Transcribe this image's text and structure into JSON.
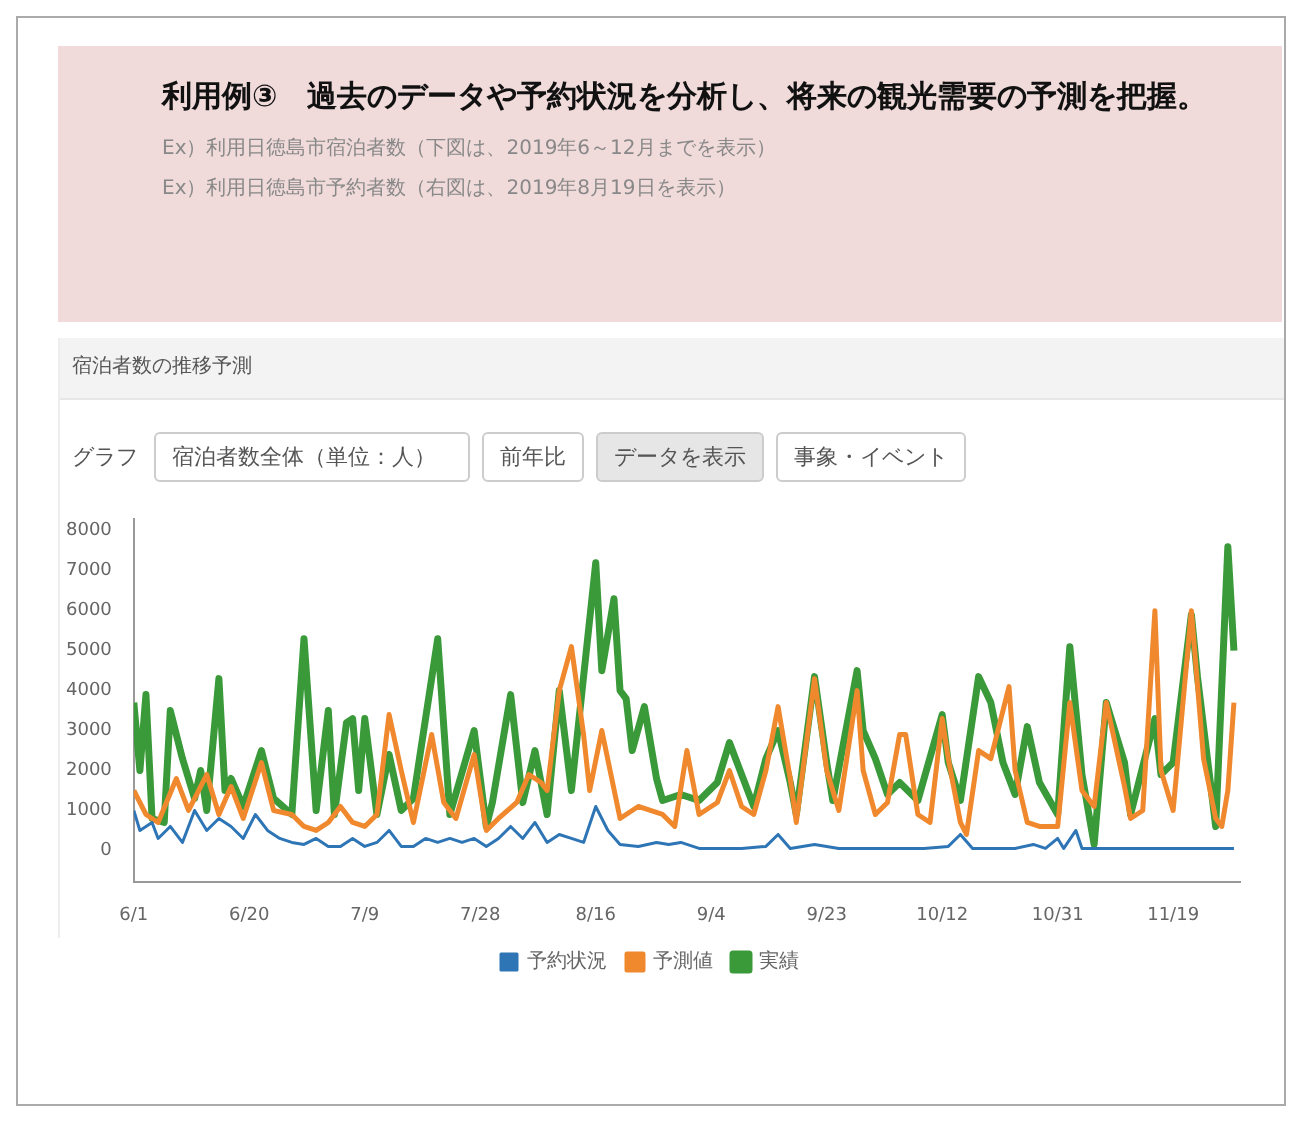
{
  "chart_data": {
    "type": "line",
    "title": "利用例③　過去のデータや予約状況を分析し、将来の観光需要の予測を把握。",
    "annotations": [
      "Ex）利用日徳島市宿泊者数（下図は、2019年6～12月までを表示）",
      "Ex）利用日徳島市予約者数（右図は、2019年8月19日を表示）",
      "宿泊者数の推移予測",
      "グラフ",
      "宿泊者数全体（単位：人）",
      "前年比",
      "データを表示",
      "事象・イベント"
    ],
    "xlim": [
      "--06-01",
      "--11-30"
    ],
    "xticks": [
      {
        "value": "--06-01",
        "label": "6/1"
      },
      {
        "value": "--06-20",
        "label": "6/20"
      },
      {
        "value": "--07-09",
        "label": "7/9"
      },
      {
        "value": "--07-28",
        "label": "7/28"
      },
      {
        "value": "--08-16",
        "label": "8/16"
      },
      {
        "value": "--09-04",
        "label": "9/4"
      },
      {
        "value": "--09-23",
        "label": "9/23"
      },
      {
        "value": "--10-12",
        "label": "10/12"
      },
      {
        "value": "--10-31",
        "label": "10/31"
      },
      {
        "value": "--11-19",
        "label": "11/19"
      }
    ],
    "ylim": [
      -800,
      8300
    ],
    "yticks": [
      0,
      1000,
      2000,
      3000,
      4000,
      5000,
      6000,
      7000,
      8000
    ],
    "grid": false,
    "legend": "bottom",
    "marker": "none",
    "line_style": "solid",
    "series": [
      {
        "name": "予約状況",
        "color": "#2e75b6",
        "x": [
          "--06-01",
          "--06-02",
          "--06-04",
          "--06-05",
          "--06-07",
          "--06-09",
          "--06-11",
          "--06-13",
          "--06-15",
          "--06-17",
          "--06-19",
          "--06-21",
          "--06-23",
          "--06-25",
          "--06-27",
          "--06-29",
          "--07-01",
          "--07-03",
          "--07-05",
          "--07-07",
          "--07-09",
          "--07-11",
          "--07-13",
          "--07-15",
          "--07-17",
          "--07-19",
          "--07-21",
          "--07-23",
          "--07-25",
          "--07-27",
          "--07-29",
          "--07-31",
          "--08-02",
          "--08-04",
          "--08-06",
          "--08-08",
          "--08-10",
          "--08-12",
          "--08-14",
          "--08-16",
          "--08-18",
          "--08-20",
          "--08-23",
          "--08-26",
          "--08-28",
          "--08-30",
          "--09-02",
          "--09-05",
          "--09-09",
          "--09-13",
          "--09-15",
          "--09-17",
          "--09-21",
          "--09-25",
          "--09-29",
          "--10-04",
          "--10-09",
          "--10-13",
          "--10-15",
          "--10-17",
          "--10-24",
          "--10-27",
          "--10-29",
          "--10-31",
          "--11-01",
          "--11-03",
          "--11-04",
          "--11-08",
          "--11-18",
          "--11-29"
        ],
        "values": [
          1000,
          500,
          700,
          300,
          600,
          200,
          1000,
          500,
          800,
          600,
          300,
          900,
          500,
          300,
          200,
          150,
          300,
          100,
          100,
          300,
          100,
          200,
          500,
          100,
          100,
          300,
          200,
          300,
          200,
          300,
          100,
          300,
          600,
          300,
          700,
          200,
          400,
          300,
          200,
          1100,
          500,
          150,
          100,
          200,
          150,
          200,
          50,
          50,
          50,
          100,
          400,
          50,
          150,
          50,
          50,
          50,
          50,
          100,
          400,
          50,
          50,
          150,
          50,
          300,
          50,
          500,
          50,
          50,
          50,
          50
        ]
      },
      {
        "name": "予測値",
        "color": "#f0882e",
        "x": [
          "--06-01",
          "--06-03",
          "--06-05",
          "--06-08",
          "--06-10",
          "--06-13",
          "--06-15",
          "--06-17",
          "--06-19",
          "--06-22",
          "--06-24",
          "--06-27",
          "--06-29",
          "--07-01",
          "--07-03",
          "--07-05",
          "--07-07",
          "--07-09",
          "--07-11",
          "--07-13",
          "--07-15",
          "--07-17",
          "--07-20",
          "--07-22",
          "--07-24",
          "--07-27",
          "--07-29",
          "--07-31",
          "--08-03",
          "--08-05",
          "--08-07",
          "--08-08",
          "--08-10",
          "--08-12",
          "--08-14",
          "--08-15",
          "--08-17",
          "--08-20",
          "--08-23",
          "--08-27",
          "--08-29",
          "--08-31",
          "--09-02",
          "--09-05",
          "--09-07",
          "--09-09",
          "--09-11",
          "--09-13",
          "--09-15",
          "--09-17",
          "--09-18",
          "--09-21",
          "--09-23",
          "--09-25",
          "--09-28",
          "--09-29",
          "--10-01",
          "--10-03",
          "--10-05",
          "--10-06",
          "--10-08",
          "--10-10",
          "--10-12",
          "--10-13",
          "--10-15",
          "--10-16",
          "--10-18",
          "--10-20",
          "--10-23",
          "--10-24",
          "--10-26",
          "--10-28",
          "--10-31",
          "--11-02",
          "--11-04",
          "--11-06",
          "--11-08",
          "--11-11",
          "--11-12",
          "--11-14",
          "--11-16",
          "--11-17",
          "--11-19",
          "--11-22",
          "--11-24",
          "--11-26",
          "--11-27",
          "--11-28",
          "--11-29"
        ],
        "values": [
          1500,
          900,
          700,
          1800,
          1000,
          1900,
          900,
          1600,
          800,
          2200,
          1000,
          900,
          600,
          500,
          700,
          1100,
          700,
          600,
          900,
          3400,
          2000,
          700,
          2900,
          1200,
          800,
          2400,
          500,
          800,
          1200,
          1900,
          1700,
          1500,
          4000,
          5100,
          2900,
          1500,
          3000,
          800,
          1100,
          900,
          600,
          2500,
          900,
          1200,
          2000,
          1100,
          900,
          2000,
          3600,
          1800,
          700,
          4300,
          2000,
          1000,
          4000,
          2000,
          900,
          1200,
          2900,
          2900,
          900,
          700,
          3300,
          2300,
          700,
          400,
          2500,
          2300,
          4100,
          2000,
          700,
          600,
          600,
          3700,
          1500,
          1100,
          3700,
          1600,
          800,
          1000,
          6000,
          2000,
          1000,
          6000,
          2300,
          800,
          600,
          1500,
          3700
        ]
      },
      {
        "name": "実績",
        "color": "#3a9a3a",
        "x": [
          "--06-01",
          "--06-02",
          "--06-03",
          "--06-04",
          "--06-06",
          "--06-07",
          "--06-09",
          "--06-11",
          "--06-12",
          "--06-13",
          "--06-15",
          "--06-16",
          "--06-17",
          "--06-19",
          "--06-22",
          "--06-24",
          "--06-27",
          "--06-29",
          "--07-01",
          "--07-03",
          "--07-04",
          "--07-06",
          "--07-07",
          "--07-08",
          "--07-09",
          "--07-11",
          "--07-13",
          "--07-15",
          "--07-17",
          "--07-21",
          "--07-23",
          "--07-27",
          "--07-29",
          "--07-30",
          "--08-02",
          "--08-04",
          "--08-06",
          "--08-08",
          "--08-10",
          "--08-12",
          "--08-16",
          "--08-17",
          "--08-19",
          "--08-20",
          "--08-21",
          "--08-22",
          "--08-24",
          "--08-26",
          "--08-27",
          "--08-30",
          "--09-02",
          "--09-05",
          "--09-07",
          "--09-09",
          "--09-11",
          "--09-13",
          "--09-15",
          "--09-17",
          "--09-18",
          "--09-21",
          "--09-23",
          "--09-24",
          "--09-28",
          "--09-29",
          "--10-01",
          "--10-03",
          "--10-05",
          "--10-08",
          "--10-12",
          "--10-13",
          "--10-15",
          "--10-18",
          "--10-20",
          "--10-22",
          "--10-24",
          "--10-26",
          "--10-28",
          "--10-31",
          "--11-02",
          "--11-04",
          "--11-06",
          "--11-08",
          "--11-11",
          "--11-12",
          "--11-16",
          "--11-17",
          "--11-19",
          "--11-22",
          "--11-23",
          "--11-26",
          "--11-28",
          "--11-29"
        ],
        "values": [
          3700,
          2000,
          3900,
          800,
          700,
          3500,
          2300,
          1300,
          2000,
          1000,
          4300,
          1500,
          1800,
          1100,
          2500,
          1300,
          900,
          5300,
          1000,
          3500,
          900,
          3200,
          3300,
          1500,
          3300,
          900,
          2400,
          1000,
          1300,
          5300,
          900,
          3000,
          600,
          1200,
          3900,
          1200,
          2500,
          900,
          4000,
          1500,
          7200,
          4500,
          6300,
          4000,
          3800,
          2500,
          3600,
          1800,
          1250,
          1400,
          1250,
          1700,
          2700,
          1900,
          1100,
          2300,
          3000,
          1700,
          900,
          4350,
          2200,
          1250,
          4500,
          3000,
          2300,
          1400,
          1700,
          1250,
          3400,
          2200,
          1250,
          4350,
          3700,
          2200,
          1400,
          3100,
          1700,
          900,
          5100,
          1900,
          150,
          3700,
          2200,
          900,
          3300,
          1900,
          2200,
          5900,
          4350,
          600,
          7600,
          5000
        ]
      }
    ]
  }
}
